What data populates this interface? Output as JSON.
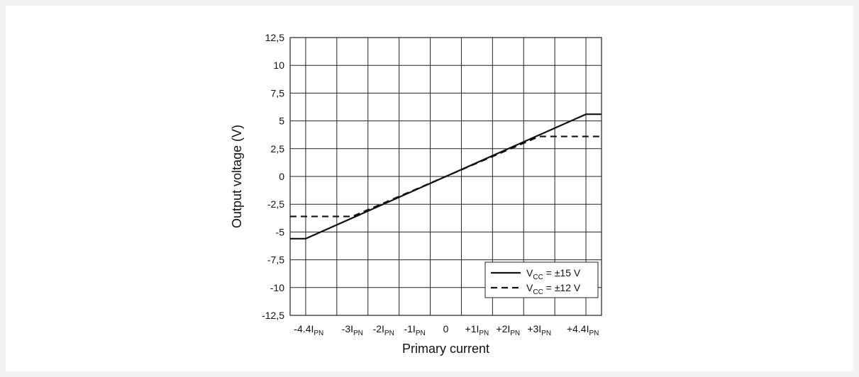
{
  "chart_data": {
    "type": "line",
    "title": "",
    "xlabel": "Primary current",
    "ylabel": "Output voltage (V)",
    "x_unit_sub": "PN",
    "x_ticks": [
      {
        "value": -4.4,
        "prefix": "-4.4I"
      },
      {
        "value": -3,
        "prefix": "-3I"
      },
      {
        "value": -2,
        "prefix": "-2I"
      },
      {
        "value": -1,
        "prefix": "-1I"
      },
      {
        "value": 0,
        "prefix": "0"
      },
      {
        "value": 1,
        "prefix": "+1I"
      },
      {
        "value": 2,
        "prefix": "+2I"
      },
      {
        "value": 3,
        "prefix": "+3I"
      },
      {
        "value": 4.4,
        "prefix": "+4.4I"
      }
    ],
    "x_grid": [
      -4.5,
      -3.5,
      -2.5,
      -1.5,
      -0.5,
      0.5,
      1.5,
      2.5,
      3.5,
      4.5
    ],
    "xlim": [
      -5,
      5
    ],
    "y_ticks": [
      "12,5",
      "10",
      "7,5",
      "5",
      "2,5",
      "0",
      "-2,5",
      "-5",
      "-7,5",
      "-10",
      "-12,5"
    ],
    "y_tick_values": [
      12.5,
      10,
      7.5,
      5,
      2.5,
      0,
      -2.5,
      -5,
      -7.5,
      -10,
      -12.5
    ],
    "ylim": [
      -12.5,
      12.5
    ],
    "grid": true,
    "legend_position": "bottom-right",
    "series": [
      {
        "name_main": "V",
        "name_sub": "CC",
        "name_rest": " = ±15 V",
        "style": "solid",
        "color": "#111111",
        "x": [
          -5,
          -4.5,
          4.5,
          5
        ],
        "y": [
          -5.6,
          -5.6,
          5.6,
          5.6
        ]
      },
      {
        "name_main": "V",
        "name_sub": "CC",
        "name_rest": " = ±12 V",
        "style": "dashed",
        "color": "#111111",
        "x": [
          -5,
          -3,
          3,
          5
        ],
        "y": [
          -3.6,
          -3.6,
          3.6,
          3.6
        ]
      }
    ]
  }
}
